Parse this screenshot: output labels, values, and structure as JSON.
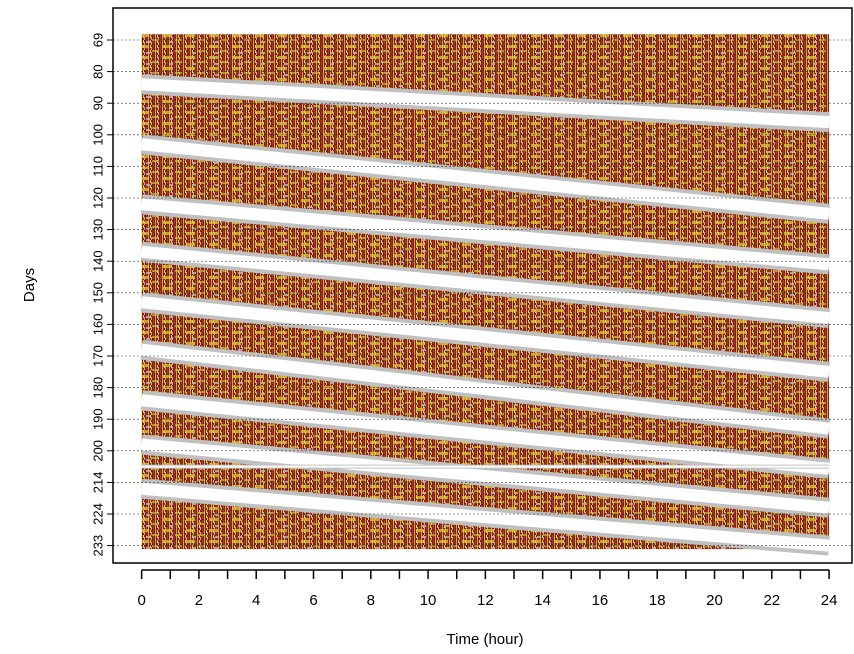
{
  "chart_data": {
    "type": "actogram",
    "xlabel": "Time (hour)",
    "ylabel": "Days",
    "xlim": [
      -1,
      24.8
    ],
    "xticks": [
      0,
      2,
      4,
      6,
      8,
      10,
      12,
      14,
      16,
      18,
      20,
      22,
      24
    ],
    "xminorticks": [
      1,
      3,
      5,
      7,
      9,
      11,
      13,
      15,
      17,
      19,
      21,
      23
    ],
    "ylim": [
      66,
      236
    ],
    "yticks": [
      69,
      80,
      90,
      100,
      110,
      120,
      130,
      140,
      150,
      160,
      170,
      180,
      190,
      200,
      214,
      224,
      233
    ],
    "grid": true,
    "record": {
      "hours": [
        0,
        24
      ],
      "days": [
        67,
        234
      ]
    },
    "rest": [
      {
        "hours": [
          0,
          24
        ],
        "days": [
          84,
          96
        ]
      },
      {
        "hours": [
          0,
          24
        ],
        "days": [
          103,
          125
        ]
      },
      {
        "hours": [
          0,
          24
        ],
        "days": [
          122,
          141
        ]
      },
      {
        "hours": [
          0,
          24
        ],
        "days": [
          137,
          158
        ]
      },
      {
        "hours": [
          0,
          24
        ],
        "days": [
          153,
          175
        ]
      },
      {
        "hours": [
          0,
          24
        ],
        "days": [
          168,
          193
        ]
      },
      {
        "hours": [
          0,
          24
        ],
        "days": [
          184,
          208
        ]
      },
      {
        "hours": [
          0,
          24
        ],
        "days": [
          198,
          222
        ]
      },
      {
        "hours": [
          0,
          24
        ],
        "days": [
          216,
          233
        ]
      },
      {
        "hours": [
          0,
          24
        ],
        "days": [
          207,
          207
        ]
      }
    ]
  }
}
